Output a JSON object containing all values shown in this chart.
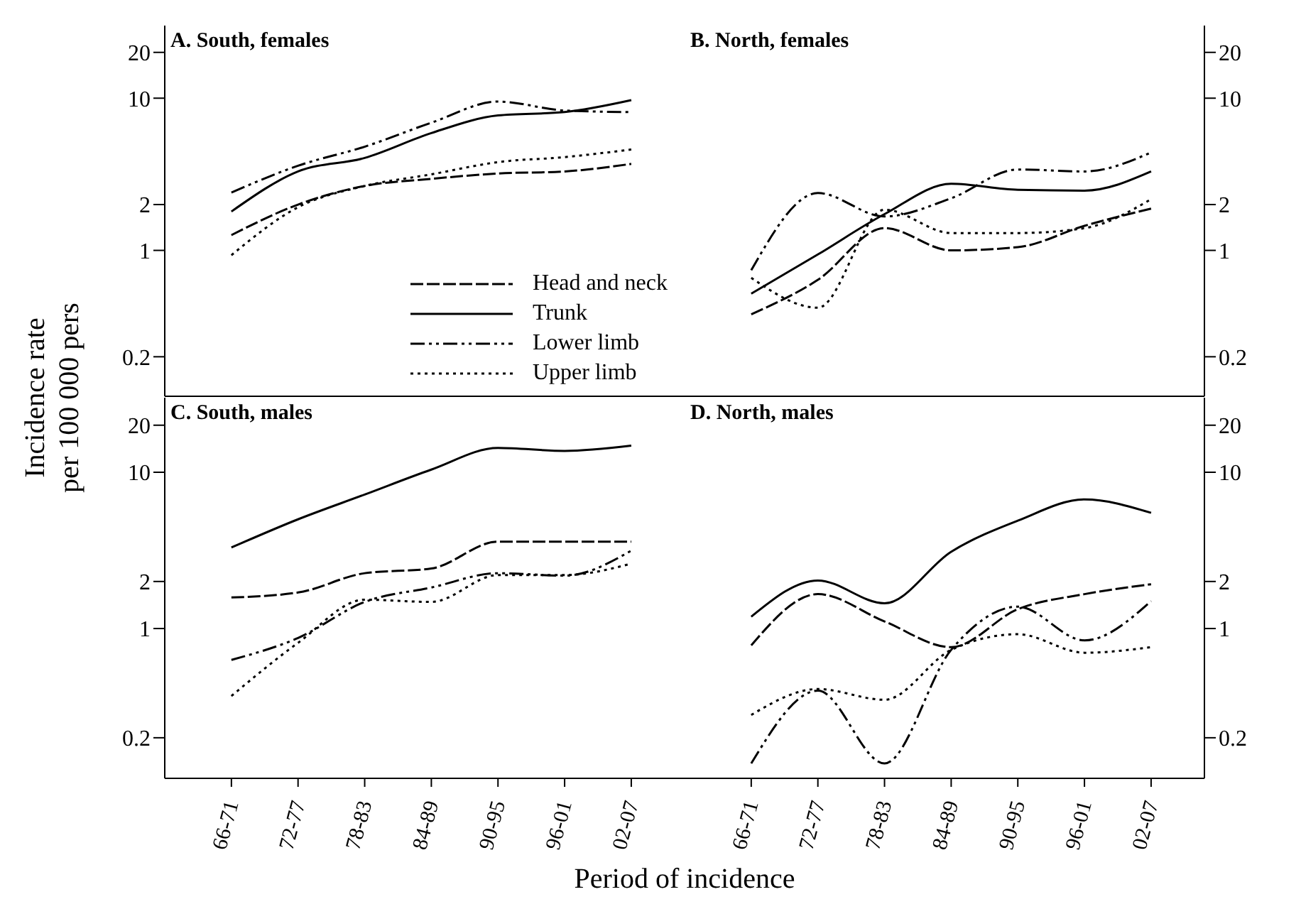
{
  "chart_data": [
    {
      "type": "line",
      "title": "A. South, females",
      "ylabel": "Incidence rate per 100 000 pers",
      "categories": [
        null,
        null,
        null,
        null,
        null,
        null,
        null
      ],
      "log": "y",
      "ylim": [
        0.11,
        30
      ],
      "yticks": [
        0.2,
        1,
        2,
        10,
        20
      ],
      "tick_labels": "y",
      "legend": "bottom right",
      "series": [
        {
          "name": "Head and neck",
          "color": "#000000",
          "line_style": "dashed",
          "values": [
            1.26,
            2.0,
            2.65,
            2.95,
            3.2,
            3.3,
            3.7
          ]
        },
        {
          "name": "Trunk",
          "color": "#000000",
          "line_style": "solid",
          "values": [
            1.8,
            3.3,
            4.05,
            5.9,
            7.7,
            8.1,
            9.7
          ]
        },
        {
          "name": "Lower limb",
          "color": "#000000",
          "line_style": "dashdot",
          "values": [
            2.4,
            3.6,
            4.8,
            6.9,
            9.5,
            8.3,
            8.1
          ]
        },
        {
          "name": "Upper limb",
          "color": "#000000",
          "line_style": "dotted",
          "values": [
            0.93,
            1.92,
            2.65,
            3.16,
            3.8,
            4.1,
            4.6
          ]
        }
      ]
    },
    {
      "type": "line",
      "title": "B. North, females",
      "categories": [
        null,
        null,
        null,
        null,
        null,
        null,
        null
      ],
      "log": "y",
      "ylim": [
        0.11,
        30
      ],
      "yticks": [
        0.2,
        1,
        2,
        10,
        20
      ],
      "tick_labels": "y",
      "series": [
        {
          "color": "#000000",
          "line_style": "dashed",
          "values": [
            0.38,
            0.64,
            1.4,
            1.0,
            1.05,
            1.45,
            1.88
          ]
        },
        {
          "color": "#000000",
          "line_style": "solid",
          "values": [
            0.52,
            0.94,
            1.73,
            2.74,
            2.5,
            2.47,
            3.3
          ]
        },
        {
          "color": "#000000",
          "line_style": "dashdot",
          "values": [
            0.74,
            2.38,
            1.67,
            2.2,
            3.4,
            3.3,
            4.4
          ]
        },
        {
          "color": "#000000",
          "line_style": "dotted",
          "values": [
            0.66,
            0.42,
            1.85,
            1.3,
            1.3,
            1.4,
            2.17
          ]
        }
      ]
    },
    {
      "type": "line",
      "title": "C. South, males",
      "xlabel": "Period of incidence",
      "categories": [
        "66-71",
        "72-77",
        "78-83",
        "84-89",
        "90-95",
        "96-01",
        "02-07"
      ],
      "log": "y",
      "ylim": [
        0.11,
        30
      ],
      "yticks": [
        0.2,
        1,
        2,
        10,
        20
      ],
      "series": [
        {
          "color": "#000000",
          "line_style": "dashed",
          "values": [
            1.58,
            1.7,
            2.26,
            2.42,
            3.6,
            3.6,
            3.6
          ]
        },
        {
          "color": "#000000",
          "line_style": "solid",
          "values": [
            3.3,
            5.0,
            7.2,
            10.4,
            14.3,
            13.7,
            14.8
          ]
        },
        {
          "color": "#000000",
          "line_style": "dashdot",
          "values": [
            0.63,
            0.87,
            1.48,
            1.83,
            2.26,
            2.18,
            3.15
          ]
        },
        {
          "color": "#000000",
          "line_style": "dotted",
          "values": [
            0.37,
            0.81,
            1.53,
            1.48,
            2.2,
            2.2,
            2.6
          ]
        }
      ]
    },
    {
      "type": "line",
      "title": "D. North, males",
      "categories": [
        "66-71",
        "72-77",
        "78-83",
        "84-89",
        "90-95",
        "96-01",
        "02-07"
      ],
      "log": "y",
      "ylim": [
        0.11,
        30
      ],
      "yticks": [
        0.2,
        1,
        2,
        10,
        20
      ],
      "series": [
        {
          "color": "#000000",
          "line_style": "dashed",
          "values": [
            0.78,
            1.66,
            1.11,
            0.76,
            1.33,
            1.66,
            1.92
          ]
        },
        {
          "color": "#000000",
          "line_style": "solid",
          "values": [
            1.19,
            2.03,
            1.45,
            3.1,
            4.9,
            6.7,
            5.5
          ]
        },
        {
          "color": "#000000",
          "line_style": "dashdot",
          "values": [
            0.137,
            0.4,
            0.137,
            0.73,
            1.38,
            0.84,
            1.5
          ]
        },
        {
          "color": "#000000",
          "line_style": "dotted",
          "values": [
            0.28,
            0.41,
            0.35,
            0.73,
            0.92,
            0.7,
            0.76
          ]
        }
      ]
    }
  ]
}
